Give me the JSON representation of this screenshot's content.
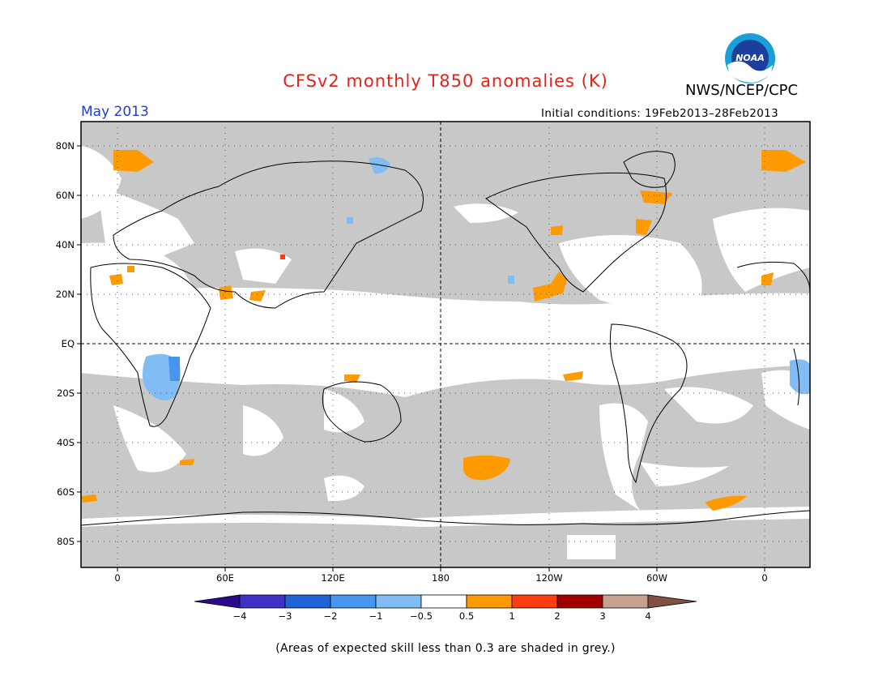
{
  "header": {
    "title": "CFSv2 monthly T850 anomalies (K)",
    "agency": "NWS/NCEP/CPC",
    "target_month": "May 2013",
    "initial_conditions": "Initial conditions: 19Feb2013–28Feb2013",
    "logo_text": "NOAA"
  },
  "map": {
    "lat_labels": [
      "80N",
      "60N",
      "40N",
      "20N",
      "EQ",
      "20S",
      "40S",
      "60S",
      "80S"
    ],
    "lon_labels": [
      "0",
      "60E",
      "120E",
      "180",
      "120W",
      "60W",
      "0"
    ]
  },
  "colorbar": {
    "ticks": [
      "−4",
      "−3",
      "−2",
      "−1",
      "−0.5",
      "0.5",
      "1",
      "2",
      "3",
      "4"
    ],
    "colors": [
      "#2a0a8c",
      "#4030c8",
      "#1e64d6",
      "#4696f0",
      "#82bcf5",
      "#ffffff",
      "#ff9a00",
      "#ff3c10",
      "#a00000",
      "#c8a090",
      "#805040"
    ]
  },
  "footnote": "(Areas of expected skill less than 0.3 are shaded in grey.)",
  "colors": {
    "skill_grey": "#c8c8c8",
    "title_red": "#e0241b",
    "month_blue": "#1f3fd6"
  }
}
